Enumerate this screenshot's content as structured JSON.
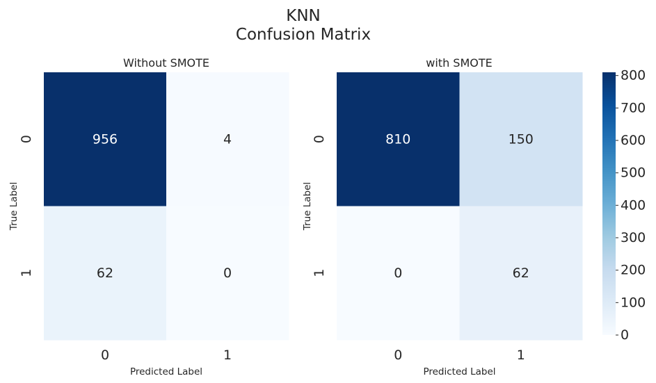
{
  "title": "KNN",
  "subtitle": "Confusion Matrix",
  "chart_data": [
    {
      "type": "heatmap",
      "title": "Without SMOTE",
      "xlabel": "Predicted Label",
      "ylabel": "True Label",
      "x_categories": [
        "0",
        "1"
      ],
      "y_categories": [
        "0",
        "1"
      ],
      "values": [
        [
          956,
          4
        ],
        [
          62,
          0
        ]
      ],
      "colormap": "Blues",
      "vmin": 0,
      "vmax": 956
    },
    {
      "type": "heatmap",
      "title": "with SMOTE",
      "xlabel": "Predicted Label",
      "ylabel": "True Label",
      "x_categories": [
        "0",
        "1"
      ],
      "y_categories": [
        "0",
        "1"
      ],
      "values": [
        [
          810,
          150
        ],
        [
          0,
          62
        ]
      ],
      "colormap": "Blues",
      "vmin": 0,
      "vmax": 810,
      "colorbar": {
        "ticks": [
          0,
          100,
          200,
          300,
          400,
          500,
          600,
          700,
          800
        ]
      }
    }
  ]
}
